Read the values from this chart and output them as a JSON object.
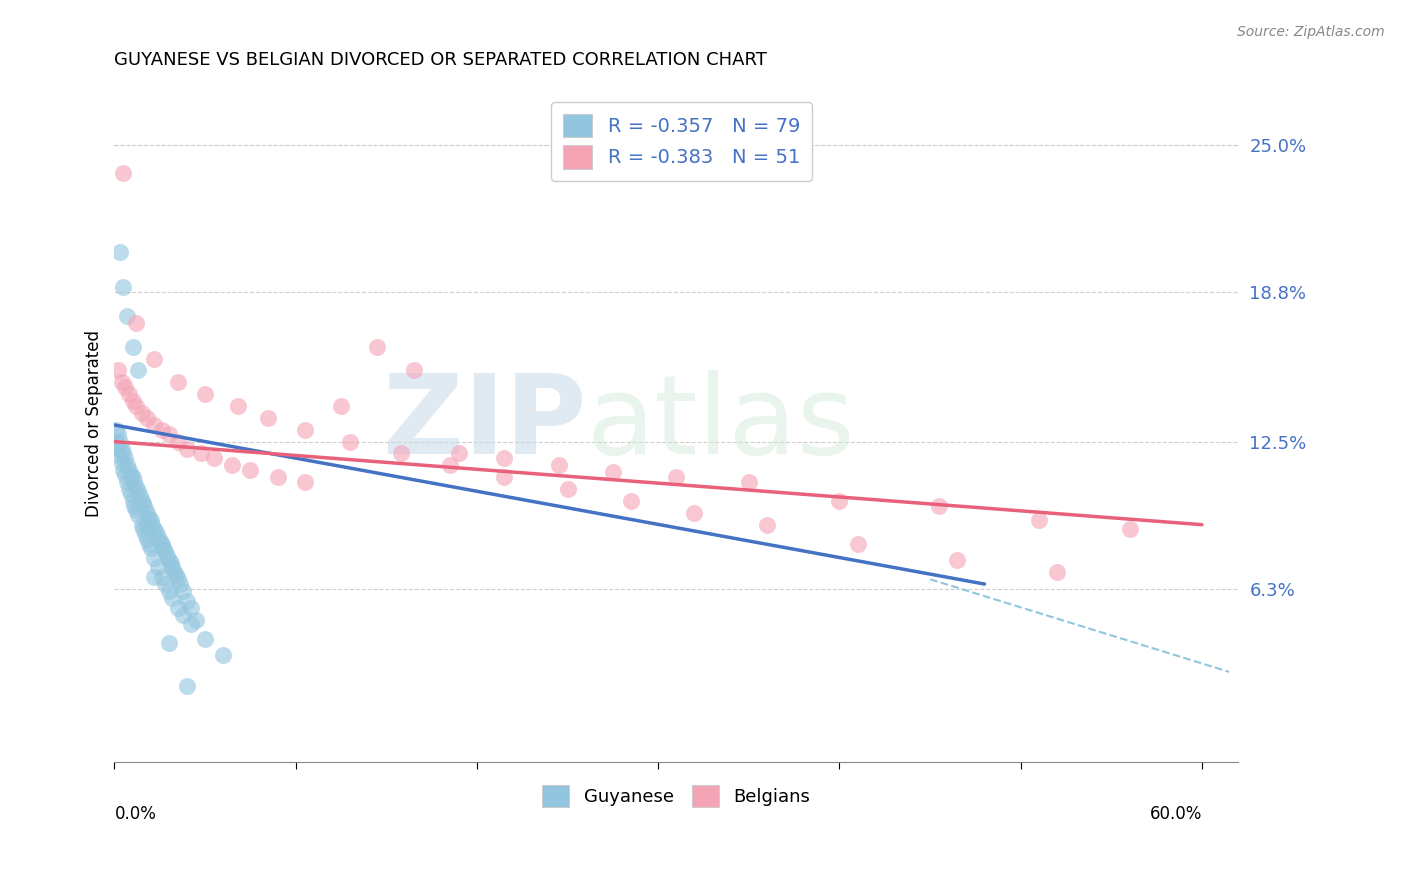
{
  "title": "GUYANESE VS BELGIAN DIVORCED OR SEPARATED CORRELATION CHART",
  "source": "Source: ZipAtlas.com",
  "ylabel": "Divorced or Separated",
  "ytick_labels": [
    "6.3%",
    "12.5%",
    "18.8%",
    "25.0%"
  ],
  "ytick_values": [
    0.063,
    0.125,
    0.188,
    0.25
  ],
  "xlim": [
    0.0,
    0.62
  ],
  "ylim": [
    -0.01,
    0.275
  ],
  "guyanese_color": "#92c5de",
  "belgian_color": "#f4a3b5",
  "guyanese_line_color": "#4472c4",
  "belgian_line_color": "#e8607a",
  "dashed_line_color": "#92c5de",
  "legend_text_color": "#4472c4",
  "right_tick_color": "#4472c4",
  "legend_R_guyanese": "-0.357",
  "legend_N_guyanese": "79",
  "legend_R_belgian": "-0.383",
  "legend_N_belgian": "51",
  "legend_label_guyanese": "Guyanese",
  "legend_label_belgian": "Belgians",
  "watermark_zip": "ZIP",
  "watermark_atlas": "atlas",
  "guyanese_x": [
    0.001,
    0.002,
    0.003,
    0.004,
    0.005,
    0.006,
    0.007,
    0.008,
    0.009,
    0.01,
    0.011,
    0.012,
    0.013,
    0.014,
    0.015,
    0.016,
    0.017,
    0.018,
    0.019,
    0.02,
    0.021,
    0.022,
    0.023,
    0.024,
    0.025,
    0.026,
    0.027,
    0.028,
    0.029,
    0.03,
    0.031,
    0.032,
    0.033,
    0.034,
    0.035,
    0.036,
    0.038,
    0.04,
    0.042,
    0.045,
    0.001,
    0.002,
    0.003,
    0.004,
    0.005,
    0.006,
    0.007,
    0.008,
    0.009,
    0.01,
    0.011,
    0.012,
    0.013,
    0.015,
    0.016,
    0.017,
    0.018,
    0.019,
    0.02,
    0.022,
    0.024,
    0.026,
    0.028,
    0.03,
    0.032,
    0.035,
    0.038,
    0.042,
    0.05,
    0.06,
    0.003,
    0.005,
    0.007,
    0.01,
    0.013,
    0.018,
    0.022,
    0.03,
    0.04
  ],
  "guyanese_y": [
    0.13,
    0.128,
    0.125,
    0.122,
    0.12,
    0.118,
    0.115,
    0.113,
    0.111,
    0.11,
    0.108,
    0.106,
    0.104,
    0.102,
    0.1,
    0.099,
    0.097,
    0.095,
    0.093,
    0.092,
    0.09,
    0.088,
    0.087,
    0.085,
    0.083,
    0.082,
    0.08,
    0.079,
    0.077,
    0.075,
    0.074,
    0.072,
    0.07,
    0.069,
    0.067,
    0.065,
    0.062,
    0.058,
    0.055,
    0.05,
    0.125,
    0.122,
    0.119,
    0.116,
    0.113,
    0.111,
    0.108,
    0.105,
    0.103,
    0.1,
    0.098,
    0.096,
    0.094,
    0.09,
    0.088,
    0.086,
    0.084,
    0.082,
    0.08,
    0.076,
    0.072,
    0.068,
    0.065,
    0.062,
    0.059,
    0.055,
    0.052,
    0.048,
    0.042,
    0.035,
    0.205,
    0.19,
    0.178,
    0.165,
    0.155,
    0.09,
    0.068,
    0.04,
    0.022
  ],
  "belgian_x": [
    0.002,
    0.004,
    0.006,
    0.008,
    0.01,
    0.012,
    0.015,
    0.018,
    0.022,
    0.026,
    0.03,
    0.035,
    0.04,
    0.048,
    0.055,
    0.065,
    0.075,
    0.09,
    0.105,
    0.125,
    0.145,
    0.165,
    0.19,
    0.215,
    0.245,
    0.275,
    0.31,
    0.35,
    0.4,
    0.455,
    0.51,
    0.56,
    0.005,
    0.012,
    0.022,
    0.035,
    0.05,
    0.068,
    0.085,
    0.105,
    0.13,
    0.158,
    0.185,
    0.215,
    0.25,
    0.285,
    0.32,
    0.36,
    0.41,
    0.465,
    0.52
  ],
  "belgian_y": [
    0.155,
    0.15,
    0.148,
    0.145,
    0.142,
    0.14,
    0.137,
    0.135,
    0.132,
    0.13,
    0.128,
    0.125,
    0.122,
    0.12,
    0.118,
    0.115,
    0.113,
    0.11,
    0.108,
    0.14,
    0.165,
    0.155,
    0.12,
    0.118,
    0.115,
    0.112,
    0.11,
    0.108,
    0.1,
    0.098,
    0.092,
    0.088,
    0.238,
    0.175,
    0.16,
    0.15,
    0.145,
    0.14,
    0.135,
    0.13,
    0.125,
    0.12,
    0.115,
    0.11,
    0.105,
    0.1,
    0.095,
    0.09,
    0.082,
    0.075,
    0.07
  ],
  "guyanese_trend_x": [
    0.0,
    0.48
  ],
  "guyanese_trend_y": [
    0.132,
    0.065
  ],
  "belgian_trend_x": [
    0.0,
    0.6
  ],
  "belgian_trend_y": [
    0.125,
    0.09
  ],
  "dashed_trend_x": [
    0.45,
    0.615
  ],
  "dashed_trend_y": [
    0.067,
    0.028
  ],
  "xtick_positions": [
    0.0,
    0.1,
    0.2,
    0.3,
    0.4,
    0.5,
    0.6
  ],
  "grid_color": "#d0d0d0",
  "spine_color": "#cccccc"
}
